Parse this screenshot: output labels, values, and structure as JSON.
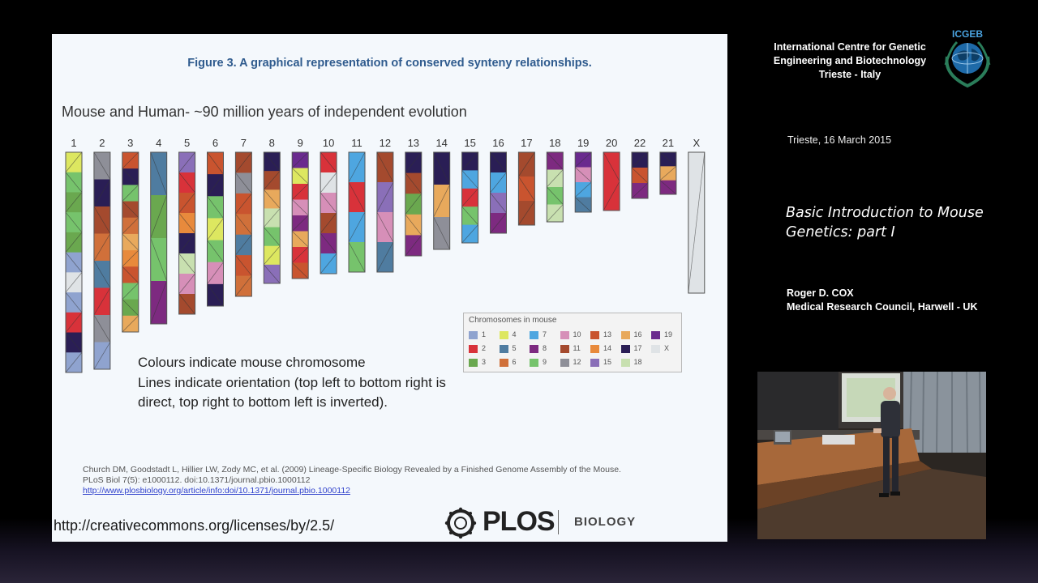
{
  "slide": {
    "figure_title": "Figure 3. A graphical representation of conserved synteny relationships.",
    "subtitle": "Mouse and Human- ~90 million years of independent evolution",
    "chromosome_labels": [
      "1",
      "2",
      "3",
      "4",
      "5",
      "6",
      "7",
      "8",
      "9",
      "10",
      "11",
      "12",
      "13",
      "14",
      "15",
      "16",
      "17",
      "18",
      "19",
      "20",
      "22",
      "21",
      "X"
    ],
    "legend": {
      "title": "Chromosomes in mouse",
      "items": [
        {
          "label": "1",
          "color": "#8fa3cf"
        },
        {
          "label": "4",
          "color": "#dde760"
        },
        {
          "label": "7",
          "color": "#4ea6e0"
        },
        {
          "label": "10",
          "color": "#d68fb8"
        },
        {
          "label": "13",
          "color": "#c9542f"
        },
        {
          "label": "16",
          "color": "#e8a95c"
        },
        {
          "label": "19",
          "color": "#6a2a8e"
        },
        {
          "label": "2",
          "color": "#d8323a"
        },
        {
          "label": "5",
          "color": "#4f7ca0"
        },
        {
          "label": "8",
          "color": "#7d2a80"
        },
        {
          "label": "11",
          "color": "#a44a2e"
        },
        {
          "label": "14",
          "color": "#e88a3c"
        },
        {
          "label": "17",
          "color": "#2a1e55"
        },
        {
          "label": "X",
          "color": "#dfe3e6"
        },
        {
          "label": "3",
          "color": "#6aa84f"
        },
        {
          "label": "6",
          "color": "#d0703a"
        },
        {
          "label": "9",
          "color": "#76c36c"
        },
        {
          "label": "12",
          "color": "#8e8f98"
        },
        {
          "label": "15",
          "color": "#8a6fb8"
        },
        {
          "label": "18",
          "color": "#c8e0b0"
        }
      ]
    },
    "colours_note": "Colours indicate mouse chromosome\nLines indicate orientation (top left to bottom right is direct, top right to bottom left is inverted).",
    "citation_text": "Church DM, Goodstadt L, Hillier LW, Zody MC, et al. (2009) Lineage-Specific Biology Revealed by a Finished Genome Assembly of the Mouse.\nPLoS Biol 7(5): e1000112. doi:10.1371/journal.pbio.1000112",
    "citation_link": "http://www.plosbiology.org/article/info:doi/10.1371/journal.pbio.1000112",
    "license_link": "http://creativecommons.org/licenses/by/2.5/",
    "plos_word": "PLOS",
    "plos_biology": "BIOLOGY"
  },
  "sidebar": {
    "org_name": "International Centre for Genetic Engineering and Biotechnology Trieste - Italy",
    "logo_text": "ICGEB",
    "date": "Trieste, 16 March 2015",
    "talk_title": "Basic Introduction to Mouse Genetics: part I",
    "speaker_name": "Roger D. COX",
    "speaker_affiliation": "Medical Research Council, Harwell -  UK"
  }
}
